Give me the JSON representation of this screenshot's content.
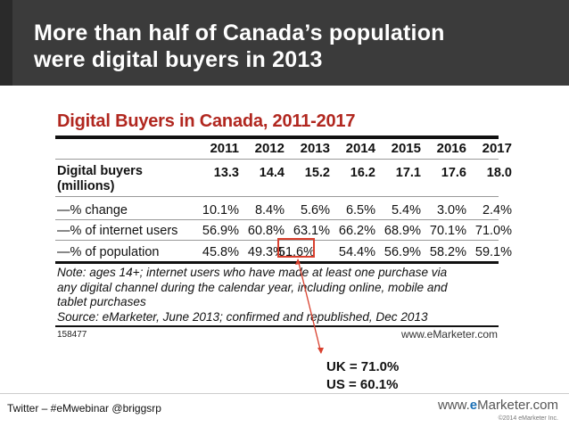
{
  "header": {
    "title_line1": "More than half of Canada’s population",
    "title_line2": "were digital buyers in 2013"
  },
  "table": {
    "title": "Digital Buyers in Canada, 2011-2017",
    "years": [
      "2011",
      "2012",
      "2013",
      "2014",
      "2015",
      "2016",
      "2017"
    ],
    "rows": [
      {
        "label_line1": "Digital buyers",
        "label_line2": "(millions)",
        "values": [
          "13.3",
          "14.4",
          "15.2",
          "16.2",
          "17.1",
          "17.6",
          "18.0"
        ]
      },
      {
        "label_line1": "—% change",
        "values": [
          "10.1%",
          "8.4%",
          "5.6%",
          "6.5%",
          "5.4%",
          "3.0%",
          "2.4%"
        ]
      },
      {
        "label_line1": "—% of internet users",
        "values": [
          "56.9%",
          "60.8%",
          "63.1%",
          "66.2%",
          "68.9%",
          "70.1%",
          "71.0%"
        ]
      },
      {
        "label_line1": "—% of population",
        "values": [
          "45.8%",
          "49.3%",
          "51.6%",
          "54.4%",
          "56.9%",
          "58.2%",
          "59.1%"
        ]
      }
    ],
    "note_line1": "Note: ages 14+; internet users who have made at least one purchase via",
    "note_line2": "any digital channel during the calendar year, including online, mobile and",
    "note_line3": "tablet purchases",
    "source": "Source: eMarketer, June 2013; confirmed and republished, Dec 2013",
    "chart_id": "158477",
    "logo": "www.eMarketer.com"
  },
  "callout": {
    "uk": "UK = 71.0%",
    "us": "US = 60.1%",
    "color": "#d9402e"
  },
  "footer": {
    "twitter": "Twitter – #eMwebinar @briggsrp",
    "brand_prefix": "www.",
    "brand_e": "e",
    "brand_suffix": "Marketer.com",
    "copyright": "©2014 eMarketer Inc."
  }
}
